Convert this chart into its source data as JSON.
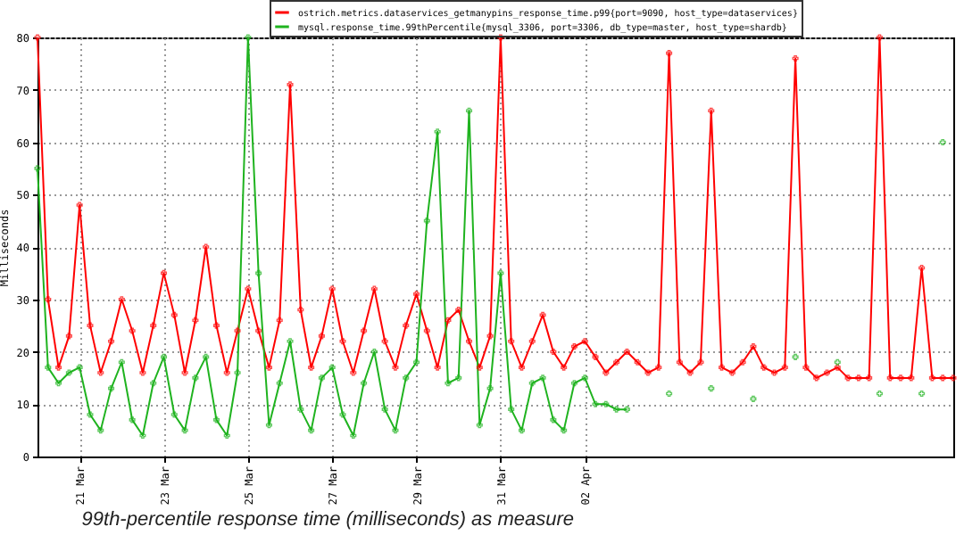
{
  "chart_data": {
    "type": "line",
    "ylabel": "Milliseconds",
    "annotations": [
      "99th-percentile response time (milliseconds) as measure"
    ],
    "x": [
      "--03-20T00:00",
      "--03-20T06:00",
      "--03-20T12:00",
      "--03-20T18:00",
      "--03-21T00:00",
      "--03-21T06:00",
      "--03-21T12:00",
      "--03-21T18:00",
      "--03-22T00:00",
      "--03-22T06:00",
      "--03-22T12:00",
      "--03-22T18:00",
      "--03-23T00:00",
      "--03-23T06:00",
      "--03-23T12:00",
      "--03-23T18:00",
      "--03-24T00:00",
      "--03-24T06:00",
      "--03-24T12:00",
      "--03-24T18:00",
      "--03-25T00:00",
      "--03-25T06:00",
      "--03-25T12:00",
      "--03-25T18:00",
      "--03-26T00:00",
      "--03-26T06:00",
      "--03-26T12:00",
      "--03-26T18:00",
      "--03-27T00:00",
      "--03-27T06:00",
      "--03-27T12:00",
      "--03-27T18:00",
      "--03-28T00:00",
      "--03-28T06:00",
      "--03-28T12:00",
      "--03-28T18:00",
      "--03-29T00:00",
      "--03-29T06:00",
      "--03-29T12:00",
      "--03-29T18:00",
      "--03-30T00:00",
      "--03-30T06:00",
      "--03-30T12:00",
      "--03-30T18:00",
      "--03-31T00:00",
      "--03-31T06:00",
      "--03-31T12:00",
      "--03-31T18:00",
      "--04-01T00:00",
      "--04-01T06:00",
      "--04-01T12:00",
      "--04-01T18:00",
      "--04-02T00:00",
      "--04-02T06:00",
      "--04-02T12:00",
      "--04-02T18:00",
      "--04-03T00:00",
      "--04-03T06:00",
      "--04-03T12:00",
      "--04-03T18:00",
      "--04-04T00:00",
      "--04-04T06:00",
      "--04-04T12:00",
      "--04-04T18:00",
      "--04-05T00:00",
      "--04-05T06:00",
      "--04-05T12:00",
      "--04-05T18:00",
      "--04-06T00:00",
      "--04-06T06:00",
      "--04-06T12:00",
      "--04-06T18:00",
      "--04-07T00:00",
      "--04-07T06:00",
      "--04-07T12:00",
      "--04-07T18:00",
      "--04-08T00:00",
      "--04-08T06:00",
      "--04-08T12:00",
      "--04-08T18:00",
      "--04-09T00:00",
      "--04-09T06:00",
      "--04-09T12:00",
      "--04-09T18:00",
      "--04-10T00:00",
      "--04-10T06:00",
      "--04-10T12:00",
      "--04-10T18:00"
    ],
    "series": [
      {
        "name": "ostrich.metrics.dataservices_getmanypins_response_time.p99{port=9090, host_type=dataservices}",
        "color": "#ff0000",
        "values": [
          80,
          30,
          17,
          23,
          48,
          25,
          16,
          22,
          30,
          24,
          16,
          25,
          35,
          27,
          16,
          26,
          40,
          25,
          16,
          24,
          32,
          24,
          17,
          26,
          71,
          28,
          17,
          23,
          32,
          22,
          16,
          24,
          32,
          22,
          17,
          25,
          31,
          24,
          17,
          26,
          28,
          22,
          17,
          23,
          80,
          22,
          17,
          22,
          27,
          20,
          17,
          21,
          22,
          19,
          16,
          18,
          20,
          18,
          16,
          17,
          77,
          18,
          16,
          18,
          66,
          17,
          16,
          18,
          21,
          17,
          16,
          17,
          76,
          17,
          15,
          16,
          17,
          15,
          15,
          15,
          80,
          15,
          15,
          15,
          36,
          15,
          15,
          15
        ]
      },
      {
        "name": "mysql.response_time.99thPercentile{mysql_3306, port=3306, db_type=master, host_type=shardb}",
        "color": "#1fb31f",
        "values": [
          55,
          17,
          14,
          16,
          17,
          8,
          5,
          13,
          18,
          7,
          4,
          14,
          19,
          8,
          5,
          15,
          19,
          7,
          4,
          16,
          80,
          35,
          6,
          14,
          22,
          9,
          5,
          15,
          17,
          8,
          4,
          14,
          20,
          9,
          5,
          15,
          18,
          45,
          62,
          14,
          15,
          66,
          6,
          13,
          35,
          9,
          5,
          14,
          15,
          7,
          5,
          14,
          15,
          10,
          10,
          9,
          9,
          null,
          null,
          null,
          12,
          null,
          null,
          null,
          13,
          null,
          null,
          null,
          11,
          null,
          null,
          null,
          19,
          null,
          null,
          null,
          18,
          null,
          null,
          null,
          12,
          null,
          null,
          null,
          12,
          null,
          60,
          null
        ]
      }
    ],
    "xlim": [
      "--03-20",
      "--04-10T18:00"
    ],
    "xticks": [
      {
        "value": "--03-21",
        "label": "21 Mar"
      },
      {
        "value": "--03-23",
        "label": "23 Mar"
      },
      {
        "value": "--03-25",
        "label": "25 Mar"
      },
      {
        "value": "--03-27",
        "label": "27 Mar"
      },
      {
        "value": "--03-29",
        "label": "29 Mar"
      },
      {
        "value": "--03-31",
        "label": "31 Mar"
      },
      {
        "value": "--04-02",
        "label": "02 Apr"
      }
    ],
    "ylim": [
      0,
      80
    ],
    "yticks": [
      0,
      10,
      20,
      30,
      40,
      50,
      60,
      70,
      80
    ],
    "grid": true,
    "legend": "top",
    "marker": "cross",
    "line_style": "solid"
  }
}
